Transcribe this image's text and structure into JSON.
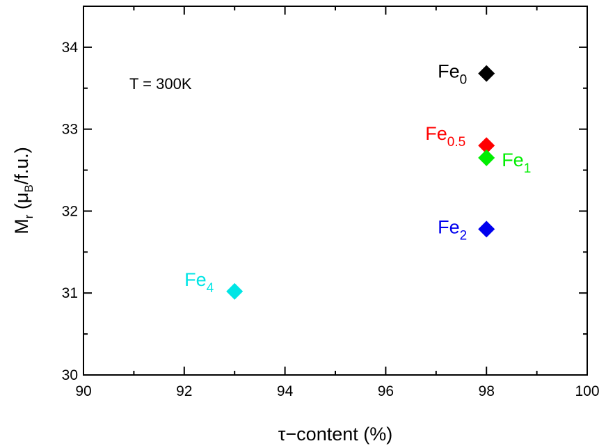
{
  "chart_data": {
    "type": "scatter",
    "xlabel": "τ−content (%)",
    "ylabel": {
      "main": "M",
      "sub1": "r",
      "paren_open": " (μ",
      "sub2": "B",
      "rest": "/f.u.)"
    },
    "xlim": [
      90,
      100
    ],
    "ylim": [
      30,
      34.5
    ],
    "x_ticks": [
      90,
      92,
      94,
      96,
      98,
      100
    ],
    "y_ticks": [
      30,
      31,
      32,
      33,
      34
    ],
    "grid": false,
    "legend": "none",
    "annotation": "T = 300K",
    "points": [
      {
        "label_main": "Fe",
        "label_sub": "0",
        "x": 98,
        "y": 33.68,
        "color": "#000000",
        "label_side": "left"
      },
      {
        "label_main": "Fe",
        "label_sub": "0.5",
        "x": 98,
        "y": 32.8,
        "color": "#ff0000",
        "label_side": "left-up"
      },
      {
        "label_main": "Fe",
        "label_sub": "1",
        "x": 98,
        "y": 32.65,
        "color": "#00ee00",
        "label_side": "right"
      },
      {
        "label_main": "Fe",
        "label_sub": "2",
        "x": 98,
        "y": 31.78,
        "color": "#0000ee",
        "label_side": "left"
      },
      {
        "label_main": "Fe",
        "label_sub": "4",
        "x": 93,
        "y": 31.02,
        "color": "#00e5e5",
        "label_side": "left-up"
      }
    ]
  }
}
